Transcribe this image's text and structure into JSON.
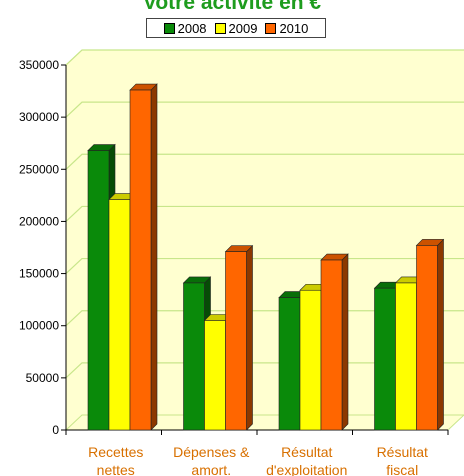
{
  "chart_data": {
    "type": "bar",
    "title": "Votre activité en €",
    "categories": [
      [
        "Recettes",
        "nettes"
      ],
      [
        "Dépenses &",
        "amort."
      ],
      [
        "Résultat",
        "d'exploitation"
      ],
      [
        "Résultat",
        "fiscal"
      ]
    ],
    "series": [
      {
        "name": "2008",
        "color": "#0a8a0a",
        "values": [
          268000,
          141000,
          127000,
          136000
        ]
      },
      {
        "name": "2009",
        "color": "#ffff00",
        "values": [
          221000,
          105000,
          134000,
          141000
        ]
      },
      {
        "name": "2010",
        "color": "#ff6600",
        "values": [
          326000,
          171000,
          163000,
          177000
        ]
      }
    ],
    "yticks": [
      "0",
      "50000",
      "100000",
      "150000",
      "200000",
      "250000",
      "300000",
      "350000"
    ],
    "ylim": [
      0,
      350000
    ],
    "grid": true,
    "legend_position": "top-center",
    "background_color": "#ffffd0",
    "grid_color": "#c8e68a"
  }
}
